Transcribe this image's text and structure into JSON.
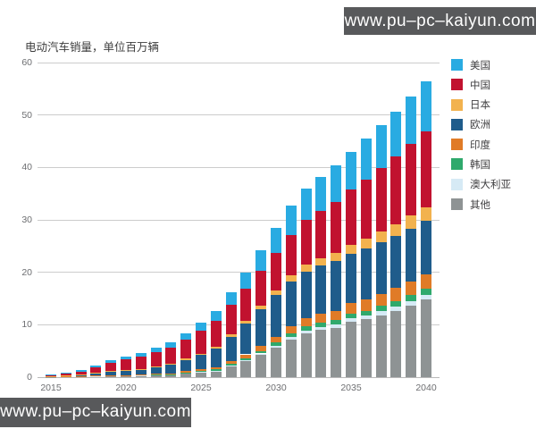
{
  "watermarks": {
    "top": "www.pu–pc–kaiyun.com",
    "bottom": "www.pu–pc–kaiyun.com"
  },
  "chart_data": {
    "type": "bar",
    "stacked": true,
    "title": "电动汽车销量，单位百万辆",
    "xlabel": "",
    "ylabel": "",
    "x": [
      2015,
      2016,
      2017,
      2018,
      2019,
      2020,
      2021,
      2022,
      2023,
      2024,
      2025,
      2026,
      2027,
      2028,
      2029,
      2030,
      2031,
      2032,
      2033,
      2034,
      2035,
      2036,
      2037,
      2038,
      2039,
      2040
    ],
    "x_tick_labels": [
      "2015",
      "2020",
      "2025",
      "2030",
      "2035",
      "2040"
    ],
    "x_tick_years": [
      2015,
      2020,
      2025,
      2030,
      2035,
      2040
    ],
    "ylim": [
      0,
      60
    ],
    "yticks": [
      0,
      10,
      20,
      30,
      40,
      50,
      60
    ],
    "grid": true,
    "legend_position": "right",
    "stack_order_bottom_to_top": [
      "其他",
      "澳大利亚",
      "韩国",
      "印度",
      "欧洲",
      "日本",
      "中国",
      "美国"
    ],
    "series": [
      {
        "key": "usa",
        "name": "美国",
        "color": "#29abe2",
        "values": [
          0.12,
          0.16,
          0.22,
          0.35,
          0.45,
          0.5,
          0.65,
          0.8,
          1.0,
          1.2,
          1.5,
          1.9,
          2.5,
          3.1,
          3.9,
          4.8,
          5.5,
          6.1,
          6.5,
          6.9,
          7.2,
          7.7,
          8.2,
          8.6,
          9.1,
          9.5
        ]
      },
      {
        "key": "china",
        "name": "中国",
        "color": "#c1122f",
        "values": [
          0.2,
          0.33,
          0.58,
          1.1,
          1.6,
          2.1,
          2.4,
          2.7,
          3.1,
          3.7,
          4.4,
          5.0,
          5.6,
          6.1,
          6.6,
          7.1,
          7.8,
          8.5,
          9.1,
          9.8,
          10.5,
          11.3,
          12.1,
          12.9,
          13.7,
          14.5
        ]
      },
      {
        "key": "japan",
        "name": "日本",
        "color": "#f2b24e",
        "values": [
          0.02,
          0.03,
          0.05,
          0.08,
          0.11,
          0.15,
          0.18,
          0.2,
          0.24,
          0.27,
          0.3,
          0.38,
          0.48,
          0.58,
          0.72,
          0.9,
          1.1,
          1.25,
          1.4,
          1.55,
          1.7,
          1.9,
          2.1,
          2.25,
          2.45,
          2.6
        ]
      },
      {
        "key": "europe",
        "name": "欧洲",
        "color": "#1f5c8b",
        "values": [
          0.1,
          0.16,
          0.26,
          0.45,
          0.62,
          0.75,
          0.9,
          1.2,
          1.6,
          2.1,
          2.7,
          3.5,
          4.6,
          5.8,
          7.0,
          8.0,
          8.6,
          9.0,
          9.2,
          9.4,
          9.5,
          9.7,
          9.8,
          9.95,
          10.1,
          10.2
        ]
      },
      {
        "key": "india",
        "name": "印度",
        "color": "#e07b27",
        "values": [
          0.01,
          0.02,
          0.03,
          0.04,
          0.05,
          0.05,
          0.08,
          0.1,
          0.15,
          0.2,
          0.3,
          0.4,
          0.55,
          0.7,
          0.9,
          1.1,
          1.3,
          1.5,
          1.65,
          1.8,
          2.0,
          2.15,
          2.3,
          2.45,
          2.6,
          2.8
        ]
      },
      {
        "key": "korea",
        "name": "韩国",
        "color": "#2fa96c",
        "values": [
          0.01,
          0.02,
          0.03,
          0.04,
          0.05,
          0.05,
          0.07,
          0.08,
          0.11,
          0.15,
          0.2,
          0.26,
          0.33,
          0.4,
          0.5,
          0.6,
          0.68,
          0.75,
          0.8,
          0.85,
          0.9,
          0.95,
          1.0,
          1.03,
          1.07,
          1.1
        ]
      },
      {
        "key": "australia",
        "name": "澳大利亚",
        "color": "#d6eaf5",
        "values": [
          0.01,
          0.01,
          0.02,
          0.02,
          0.03,
          0.02,
          0.04,
          0.05,
          0.06,
          0.08,
          0.1,
          0.14,
          0.19,
          0.25,
          0.32,
          0.4,
          0.48,
          0.55,
          0.6,
          0.65,
          0.7,
          0.74,
          0.78,
          0.82,
          0.86,
          0.9
        ]
      },
      {
        "key": "other",
        "name": "其他",
        "color": "#8e9394",
        "values": [
          0.05,
          0.09,
          0.13,
          0.22,
          0.27,
          0.28,
          0.33,
          0.42,
          0.4,
          0.7,
          0.9,
          1.1,
          2.0,
          3.0,
          4.2,
          5.6,
          7.2,
          8.4,
          9.0,
          9.4,
          10.5,
          11.0,
          11.8,
          12.7,
          13.7,
          14.8
        ]
      }
    ]
  }
}
